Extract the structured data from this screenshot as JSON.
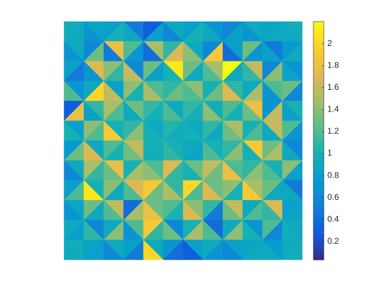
{
  "chart_data": {
    "type": "heatmap",
    "colormap": [
      "#352a87",
      "#0f5cdd",
      "#127dd8",
      "#079ccf",
      "#15b1b4",
      "#59bd8c",
      "#a5be6b",
      "#e1b952",
      "#fcce2e",
      "#f9fb0e"
    ],
    "clim": [
      0.035,
      2.2
    ],
    "colorbar_ticks": [
      0.2,
      0.4,
      0.6,
      0.8,
      1,
      1.2,
      1.4,
      1.6,
      1.8,
      2
    ],
    "values": [
      [
        0.95,
        0.9,
        0.85,
        0.7,
        0.8,
        1.0,
        0.5,
        0.9,
        0.3,
        0.8,
        0.9,
        0.6,
        0.8,
        1.0,
        0.7,
        0.9,
        0.6,
        0.8,
        0.9,
        0.7,
        0.85,
        0.9,
        0.95,
        0.9
      ],
      [
        0.9,
        0.7,
        0.6,
        1.3,
        1.8,
        0.5,
        1.2,
        0.7,
        1.5,
        0.4,
        1.1,
        1.7,
        0.9,
        1.4,
        0.6,
        1.9,
        0.8,
        0.4,
        1.3,
        0.7,
        0.5,
        0.8,
        0.75,
        0.9
      ],
      [
        0.8,
        0.5,
        1.7,
        0.7,
        1.4,
        1.1,
        0.6,
        1.6,
        1.3,
        0.8,
        2.1,
        1.0,
        1.3,
        0.9,
        1.5,
        1.2,
        2.2,
        0.9,
        1.6,
        1.1,
        0.6,
        1.4,
        0.7,
        0.85
      ],
      [
        0.7,
        1.2,
        0.9,
        2.0,
        0.8,
        1.6,
        1.4,
        1.0,
        1.2,
        1.5,
        1.1,
        1.3,
        1.4,
        1.2,
        1.0,
        1.3,
        1.1,
        1.7,
        0.9,
        1.5,
        1.2,
        0.7,
        1.3,
        0.6
      ],
      [
        0.3,
        1.8,
        1.1,
        0.8,
        1.5,
        1.2,
        1.3,
        0.9,
        1.1,
        1.0,
        0.9,
        1.2,
        1.1,
        1.0,
        0.95,
        1.4,
        1.2,
        1.0,
        1.8,
        1.3,
        0.7,
        1.6,
        1.0,
        0.8
      ],
      [
        0.8,
        1.0,
        1.4,
        1.2,
        1.0,
        1.9,
        1.1,
        1.4,
        0.9,
        1.0,
        1.05,
        0.95,
        0.9,
        1.0,
        1.1,
        0.9,
        1.5,
        1.3,
        1.0,
        1.2,
        1.6,
        0.9,
        1.2,
        0.7
      ],
      [
        0.75,
        1.3,
        0.9,
        1.7,
        1.2,
        1.0,
        1.6,
        1.3,
        1.0,
        0.95,
        1.0,
        1.1,
        0.9,
        0.85,
        1.0,
        1.2,
        1.1,
        1.4,
        1.9,
        1.0,
        1.3,
        1.5,
        0.6,
        0.9
      ],
      [
        0.9,
        0.6,
        1.5,
        1.1,
        1.8,
        1.3,
        1.0,
        1.5,
        1.2,
        1.4,
        1.7,
        1.1,
        1.3,
        1.0,
        1.6,
        1.3,
        1.2,
        1.8,
        1.1,
        1.4,
        1.0,
        1.2,
        1.4,
        0.8
      ],
      [
        0.8,
        1.2,
        1.0,
        2.1,
        1.4,
        0.9,
        1.7,
        1.2,
        1.9,
        1.3,
        1.1,
        1.5,
        2.0,
        1.2,
        1.3,
        1.7,
        1.4,
        1.0,
        1.5,
        1.9,
        1.3,
        0.9,
        0.5,
        0.9
      ],
      [
        0.85,
        0.7,
        1.3,
        0.9,
        1.6,
        1.2,
        0.4,
        1.5,
        1.3,
        1.8,
        1.2,
        1.0,
        1.4,
        1.7,
        1.1,
        0.5,
        1.6,
        1.3,
        0.9,
        1.2,
        1.7,
        1.1,
        0.8,
        0.85
      ],
      [
        0.9,
        0.8,
        0.6,
        1.1,
        0.9,
        1.4,
        1.2,
        0.7,
        1.9,
        1.1,
        0.6,
        1.3,
        1.0,
        1.5,
        0.4,
        1.2,
        0.9,
        1.4,
        0.7,
        1.0,
        1.2,
        0.6,
        0.9,
        0.95
      ],
      [
        0.95,
        0.9,
        0.85,
        0.8,
        0.9,
        0.6,
        0.8,
        0.5,
        0.9,
        2.0,
        0.7,
        0.4,
        0.8,
        0.3,
        0.9,
        0.7,
        0.8,
        0.6,
        0.85,
        0.9,
        0.75,
        0.9,
        0.9,
        0.95
      ]
    ]
  }
}
